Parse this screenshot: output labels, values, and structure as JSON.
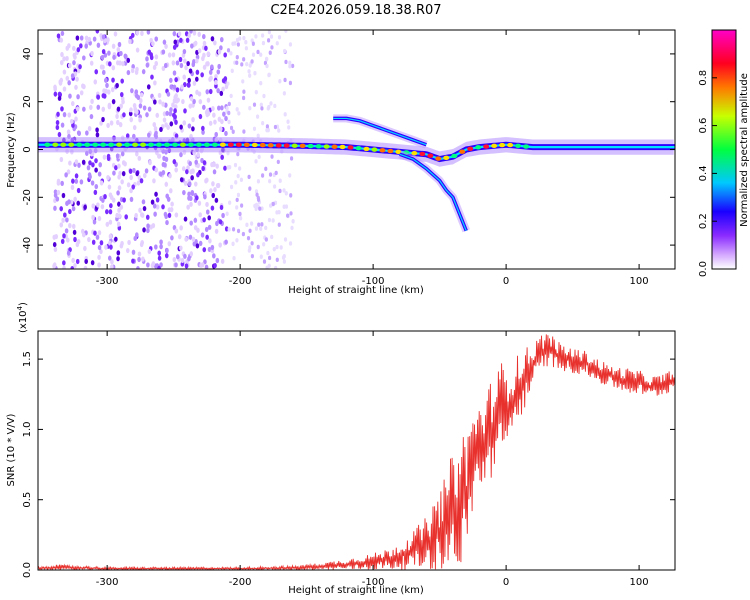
{
  "figure_title": "C2E4.2026.059.18.38.R07",
  "chart_data": [
    {
      "type": "heatmap",
      "title": "C2E4.2026.059.18.38.R07",
      "xlabel": "Height of straight line (km)",
      "ylabel": "Frequency (Hz)",
      "xlim": [
        -352,
        127
      ],
      "ylim": [
        -50,
        50
      ],
      "xticks": [
        -300,
        -200,
        -100,
        0,
        100
      ],
      "yticks": [
        -40,
        -20,
        0,
        20,
        40
      ],
      "noise_region_x": [
        -340,
        -210
      ],
      "sparse_noise_region_x": [
        -210,
        -160
      ],
      "carrier_line": {
        "x": [
          -352,
          -300,
          -250,
          -200,
          -150,
          -120,
          -100,
          -80,
          -60,
          -50,
          -40,
          -30,
          -20,
          -10,
          0,
          20,
          60,
          127
        ],
        "y": [
          2,
          2,
          2,
          2,
          1.5,
          1,
          0,
          -1,
          -2,
          -4,
          -3,
          0,
          1,
          1.5,
          2,
          1,
          1,
          1
        ]
      },
      "upper_branch": {
        "x": [
          -130,
          -120,
          -110,
          -100,
          -90,
          -80,
          -70,
          -60
        ],
        "y": [
          13,
          13,
          12,
          10,
          8,
          6,
          4,
          2
        ]
      },
      "lower_branch": {
        "x": [
          -80,
          -70,
          -60,
          -50,
          -45,
          -40,
          -35,
          -30
        ],
        "y": [
          -2,
          -4,
          -8,
          -13,
          -17,
          -20,
          -27,
          -34
        ]
      },
      "colorbar": {
        "label": "Normalized spectral amplitude",
        "range": [
          0.0,
          1.0
        ],
        "ticks": [
          "0.0",
          "0.2",
          "0.4",
          "0.6",
          "0.8"
        ],
        "tick_values": [
          0.0,
          0.2,
          0.4,
          0.6,
          0.8
        ],
        "colors": [
          "#ffffff",
          "#c080ff",
          "#6a00ff",
          "#0000ff",
          "#00ffff",
          "#00ff00",
          "#ffff00",
          "#ff0000",
          "#ff00ff"
        ]
      }
    },
    {
      "type": "line",
      "xlabel": "Height of straight line (km)",
      "ylabel": "SNR (10 * V/V)",
      "y_scale_label": "(x10",
      "y_scale_exp": "4",
      "y_scale_close": ")",
      "xlim": [
        -352,
        127
      ],
      "ylim": [
        0,
        1.7
      ],
      "xticks": [
        -300,
        -200,
        -100,
        0,
        100
      ],
      "yticks": [
        "0.0",
        "0.5",
        "1.0",
        "1.5"
      ],
      "ytick_values": [
        0.0,
        0.5,
        1.0,
        1.5
      ],
      "series": [
        {
          "name": "SNR",
          "color": "#e8302c",
          "envelope": {
            "x": [
              -352,
              -340,
              -300,
              -250,
              -200,
              -160,
              -140,
              -120,
              -100,
              -90,
              -80,
              -70,
              -60,
              -50,
              -45,
              -40,
              -35,
              -30,
              -25,
              -20,
              -15,
              -10,
              -5,
              0,
              5,
              10,
              20,
              30,
              40,
              50,
              60,
              70,
              80,
              90,
              100,
              110,
              120,
              127
            ],
            "low": [
              0.0,
              0.0,
              0.0,
              0.0,
              0.0,
              0.0,
              0.0,
              0.0,
              0.0,
              0.0,
              0.0,
              0.0,
              0.0,
              0.0,
              0.0,
              0.0,
              0.0,
              0.0,
              0.45,
              0.55,
              0.6,
              0.65,
              0.7,
              0.85,
              0.95,
              1.05,
              1.3,
              1.45,
              1.42,
              1.4,
              1.38,
              1.32,
              1.3,
              1.25,
              1.25,
              1.22,
              1.25,
              1.28
            ],
            "high": [
              0.02,
              0.04,
              0.02,
              0.02,
              0.02,
              0.03,
              0.05,
              0.08,
              0.12,
              0.15,
              0.2,
              0.28,
              0.38,
              0.55,
              0.7,
              0.85,
              0.95,
              1.05,
              1.15,
              1.2,
              1.25,
              1.4,
              1.5,
              1.45,
              1.48,
              1.55,
              1.62,
              1.72,
              1.62,
              1.58,
              1.56,
              1.5,
              1.45,
              1.44,
              1.42,
              1.38,
              1.4,
              1.45
            ]
          }
        }
      ]
    }
  ]
}
